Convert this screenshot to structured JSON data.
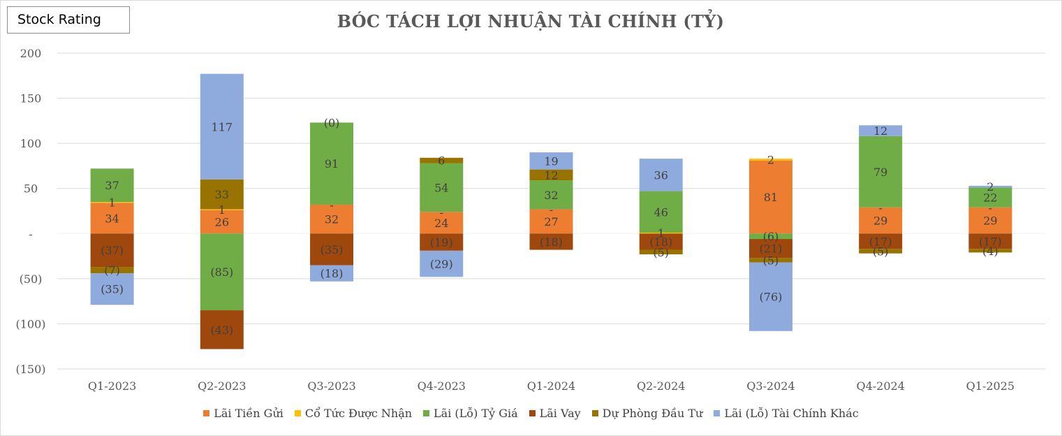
{
  "badge": {
    "label": "Stock Rating"
  },
  "colors": {
    "grid": "#d9d9d9",
    "axis_text": "#595959",
    "label_text": "#404040"
  },
  "chart_data": {
    "type": "bar",
    "stacked": true,
    "title": "BÓC TÁCH LỢI NHUẬN TÀI CHÍNH (TỶ)",
    "xlabel": "",
    "ylabel": "",
    "ylim": [
      -150,
      200
    ],
    "yticks": [
      200,
      150,
      100,
      50,
      0,
      -50,
      -100,
      -150
    ],
    "ytick_labels": [
      "200",
      "150",
      "100",
      "50",
      "-",
      "(50)",
      "(100)",
      "(150)"
    ],
    "grid": true,
    "legend_position": "bottom",
    "categories": [
      "Q1-2023",
      "Q2-2023",
      "Q3-2023",
      "Q4-2023",
      "Q1-2024",
      "Q2-2024",
      "Q3-2024",
      "Q4-2024",
      "Q1-2025"
    ],
    "series": [
      {
        "name": "Lãi Tiền Gửi",
        "color": "#ed7d31",
        "values": [
          34,
          26,
          32,
          24,
          27,
          0,
          81,
          29,
          29
        ],
        "labels": [
          "34",
          "26",
          "32",
          "24",
          "27",
          "",
          "81",
          "29",
          "29"
        ]
      },
      {
        "name": "Cổ Tức Được Nhận",
        "color": "#ffc000",
        "values": [
          1,
          1,
          0,
          0,
          0,
          1,
          2,
          0,
          0
        ],
        "labels": [
          "1",
          "1",
          "-",
          "-",
          "-",
          "1",
          "2",
          "-",
          "-"
        ]
      },
      {
        "name": "Lãi (Lỗ) Tỷ Giá",
        "color": "#70ad47",
        "values": [
          37,
          -85,
          91,
          54,
          32,
          46,
          -6,
          79,
          22
        ],
        "labels": [
          "37",
          "(85)",
          "91",
          "54",
          "32",
          "46",
          "(6)",
          "79",
          "22"
        ]
      },
      {
        "name": "Lãi Vay",
        "color": "#9e480e",
        "values": [
          -37,
          -43,
          -35,
          -19,
          -18,
          -18,
          -21,
          -17,
          -17
        ],
        "labels": [
          "(37)",
          "(43)",
          "(35)",
          "(19)",
          "(18)",
          "(18)",
          "(21)",
          "(17)",
          "(17)"
        ]
      },
      {
        "name": "Dự Phòng Đầu Tư",
        "color": "#997300",
        "values": [
          -7,
          33,
          0,
          6,
          12,
          -5,
          -5,
          -5,
          -4
        ],
        "labels": [
          "(7)",
          "33",
          "(0)",
          "6",
          "12",
          "(5)",
          "(5)",
          "(5)",
          "(4)"
        ]
      },
      {
        "name": "Lãi (Lỗ) Tài Chính Khác",
        "color": "#8faadc",
        "values": [
          -35,
          117,
          -18,
          -29,
          19,
          36,
          -76,
          12,
          2
        ],
        "labels": [
          "(35)",
          "117",
          "(18)",
          "(29)",
          "19",
          "36",
          "(76)",
          "12",
          "2"
        ]
      }
    ]
  }
}
